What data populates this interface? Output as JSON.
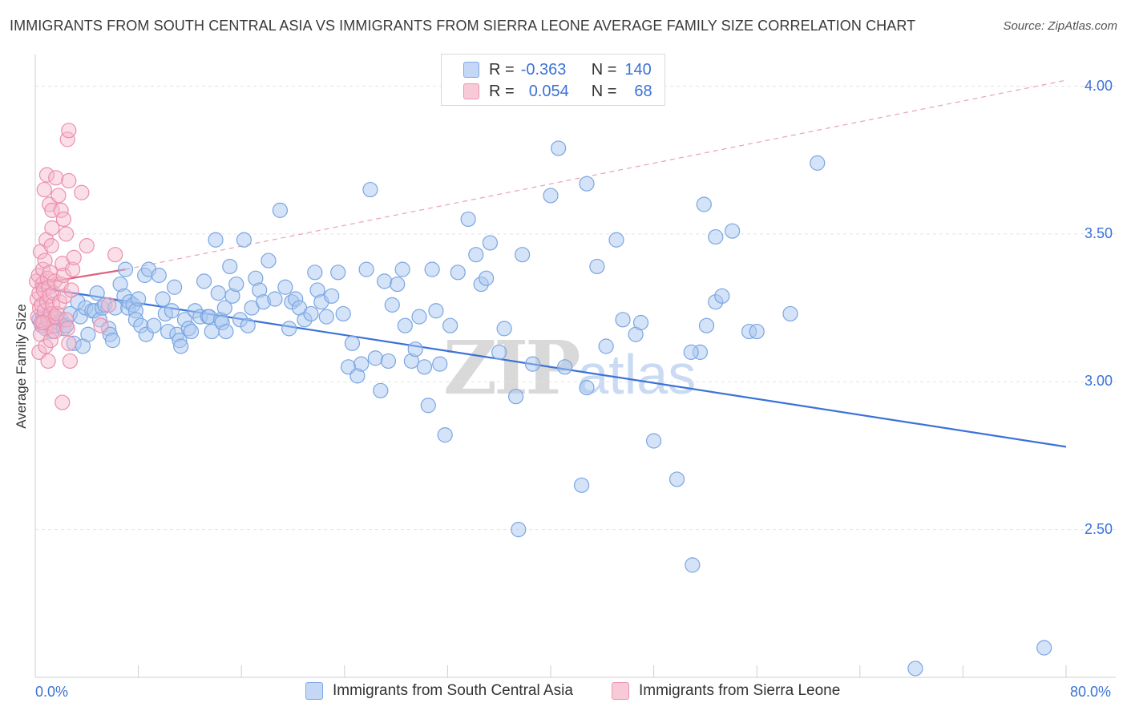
{
  "title": "IMMIGRANTS FROM SOUTH CENTRAL ASIA VS IMMIGRANTS FROM SIERRA LEONE AVERAGE FAMILY SIZE CORRELATION CHART",
  "source": "Source: ZipAtlas.com",
  "watermark": {
    "zip": "ZIP",
    "atlas": "atlas"
  },
  "colors": {
    "blue": "#3b72d8",
    "blue_fill": "#aac8f0",
    "pink": "#e0607e",
    "pink_fill": "#f4b8cc"
  },
  "legend": {
    "rows": [
      {
        "r_label": "R =",
        "r_value": "-0.363",
        "n_label": "N =",
        "n_value": "140"
      },
      {
        "r_label": "R =",
        "r_value": "0.054",
        "n_label": "N =",
        "n_value": "68"
      }
    ]
  },
  "chart_data": {
    "type": "scatter",
    "title": "IMMIGRANTS FROM SOUTH CENTRAL ASIA VS IMMIGRANTS FROM SIERRA LEONE AVERAGE FAMILY SIZE CORRELATION CHART",
    "xlabel": "",
    "ylabel": "Average Family Size",
    "xlim": [
      0,
      80
    ],
    "ylim": [
      2.0,
      4.08
    ],
    "x_tick_labels": [
      "0.0%",
      "80.0%"
    ],
    "y_ticks": [
      2.5,
      3.0,
      3.5,
      4.0
    ],
    "y_tick_labels": [
      "2.50",
      "3.00",
      "3.50",
      "4.00"
    ],
    "grid": true,
    "legend_position": "top-center",
    "series": [
      {
        "name": "Immigrants from South Central Asia",
        "color": "#3b72d8",
        "trend": {
          "x": [
            0,
            80
          ],
          "y": [
            3.32,
            2.78
          ]
        },
        "points": [
          [
            0.3,
            3.21
          ],
          [
            0.5,
            3.19
          ],
          [
            0.6,
            3.22
          ],
          [
            0.8,
            3.18
          ],
          [
            1.0,
            3.21
          ],
          [
            1.2,
            3.2
          ],
          [
            1.3,
            3.17
          ],
          [
            1.5,
            3.22
          ],
          [
            1.6,
            3.19
          ],
          [
            1.8,
            3.2
          ],
          [
            2.0,
            3.21
          ],
          [
            2.2,
            3.18
          ],
          [
            2.4,
            3.19
          ],
          [
            2.7,
            3.23
          ],
          [
            3.0,
            3.13
          ],
          [
            3.3,
            3.27
          ],
          [
            3.5,
            3.22
          ],
          [
            3.7,
            3.12
          ],
          [
            3.9,
            3.25
          ],
          [
            4.1,
            3.16
          ],
          [
            4.4,
            3.24
          ],
          [
            4.6,
            3.24
          ],
          [
            4.8,
            3.3
          ],
          [
            5.0,
            3.21
          ],
          [
            5.2,
            3.25
          ],
          [
            5.4,
            3.26
          ],
          [
            5.7,
            3.18
          ],
          [
            5.8,
            3.16
          ],
          [
            6.0,
            3.14
          ],
          [
            6.2,
            3.25
          ],
          [
            6.6,
            3.33
          ],
          [
            6.9,
            3.29
          ],
          [
            7.0,
            3.38
          ],
          [
            7.2,
            3.25
          ],
          [
            7.3,
            3.27
          ],
          [
            7.6,
            3.26
          ],
          [
            7.8,
            3.24
          ],
          [
            8.0,
            3.28
          ],
          [
            7.8,
            3.21
          ],
          [
            8.2,
            3.19
          ],
          [
            8.5,
            3.36
          ],
          [
            8.6,
            3.16
          ],
          [
            8.8,
            3.38
          ],
          [
            9.2,
            3.19
          ],
          [
            9.6,
            3.36
          ],
          [
            9.9,
            3.28
          ],
          [
            10.1,
            3.23
          ],
          [
            10.3,
            3.17
          ],
          [
            10.6,
            3.24
          ],
          [
            10.8,
            3.32
          ],
          [
            11.0,
            3.16
          ],
          [
            11.2,
            3.14
          ],
          [
            11.3,
            3.12
          ],
          [
            11.6,
            3.21
          ],
          [
            11.9,
            3.18
          ],
          [
            12.1,
            3.17
          ],
          [
            12.4,
            3.24
          ],
          [
            12.8,
            3.22
          ],
          [
            13.1,
            3.34
          ],
          [
            13.4,
            3.22
          ],
          [
            13.5,
            3.22
          ],
          [
            13.7,
            3.17
          ],
          [
            14.0,
            3.48
          ],
          [
            14.2,
            3.3
          ],
          [
            14.4,
            3.21
          ],
          [
            14.5,
            3.2
          ],
          [
            14.7,
            3.25
          ],
          [
            14.8,
            3.17
          ],
          [
            15.1,
            3.39
          ],
          [
            15.3,
            3.29
          ],
          [
            15.6,
            3.33
          ],
          [
            15.9,
            3.21
          ],
          [
            16.2,
            3.48
          ],
          [
            16.5,
            3.19
          ],
          [
            16.8,
            3.25
          ],
          [
            17.1,
            3.35
          ],
          [
            17.4,
            3.31
          ],
          [
            17.7,
            3.27
          ],
          [
            18.1,
            3.41
          ],
          [
            18.6,
            3.28
          ],
          [
            19.0,
            3.58
          ],
          [
            19.4,
            3.32
          ],
          [
            19.7,
            3.18
          ],
          [
            19.9,
            3.27
          ],
          [
            20.2,
            3.28
          ],
          [
            20.5,
            3.25
          ],
          [
            20.9,
            3.21
          ],
          [
            21.4,
            3.23
          ],
          [
            21.7,
            3.37
          ],
          [
            21.9,
            3.31
          ],
          [
            22.2,
            3.27
          ],
          [
            22.6,
            3.22
          ],
          [
            23.0,
            3.29
          ],
          [
            23.5,
            3.37
          ],
          [
            23.9,
            3.23
          ],
          [
            24.3,
            3.05
          ],
          [
            24.6,
            3.13
          ],
          [
            25.0,
            3.02
          ],
          [
            25.3,
            3.06
          ],
          [
            25.7,
            3.38
          ],
          [
            26.0,
            3.65
          ],
          [
            26.4,
            3.08
          ],
          [
            26.8,
            2.97
          ],
          [
            27.1,
            3.34
          ],
          [
            27.4,
            3.07
          ],
          [
            27.7,
            3.26
          ],
          [
            28.1,
            3.33
          ],
          [
            28.5,
            3.38
          ],
          [
            28.7,
            3.19
          ],
          [
            29.2,
            3.07
          ],
          [
            29.5,
            3.11
          ],
          [
            29.8,
            3.22
          ],
          [
            30.2,
            3.05
          ],
          [
            30.5,
            2.92
          ],
          [
            30.8,
            3.38
          ],
          [
            31.1,
            3.24
          ],
          [
            31.4,
            3.06
          ],
          [
            31.8,
            2.82
          ],
          [
            32.2,
            3.19
          ],
          [
            32.8,
            3.37
          ],
          [
            33.6,
            3.55
          ],
          [
            34.2,
            3.43
          ],
          [
            34.6,
            3.33
          ],
          [
            35.0,
            3.35
          ],
          [
            35.3,
            3.47
          ],
          [
            36.0,
            3.1
          ],
          [
            36.4,
            3.18
          ],
          [
            37.3,
            2.95
          ],
          [
            37.8,
            3.43
          ],
          [
            38.6,
            3.06
          ],
          [
            40.0,
            3.63
          ],
          [
            41.1,
            3.05
          ],
          [
            42.4,
            2.65
          ],
          [
            42.8,
            2.98
          ],
          [
            43.6,
            3.39
          ],
          [
            44.3,
            3.12
          ],
          [
            45.1,
            3.48
          ],
          [
            45.6,
            3.21
          ],
          [
            46.6,
            3.16
          ],
          [
            47.0,
            3.2
          ],
          [
            48.0,
            2.8
          ],
          [
            49.8,
            2.67
          ],
          [
            51.6,
            3.1
          ],
          [
            52.1,
            3.19
          ],
          [
            52.8,
            3.27
          ],
          [
            53.3,
            3.29
          ],
          [
            55.4,
            3.17
          ],
          [
            56.0,
            3.17
          ],
          [
            40.6,
            3.79
          ],
          [
            42.8,
            3.67
          ],
          [
            51.9,
            3.6
          ],
          [
            54.1,
            3.51
          ],
          [
            60.7,
            3.74
          ],
          [
            37.5,
            2.5
          ],
          [
            51.0,
            2.38
          ],
          [
            58.6,
            3.23
          ],
          [
            68.3,
            2.03
          ],
          [
            78.3,
            2.1
          ],
          [
            50.9,
            3.1
          ],
          [
            52.8,
            3.49
          ]
        ]
      },
      {
        "name": "Immigrants from Sierra Leone",
        "color": "#e0607e",
        "trend": {
          "x": [
            0,
            7.0
          ],
          "y": [
            3.33,
            3.38
          ]
        },
        "trend_extension": {
          "x": [
            7.0,
            80
          ],
          "y": [
            3.38,
            4.02
          ]
        },
        "points": [
          [
            0.1,
            3.34
          ],
          [
            0.15,
            3.28
          ],
          [
            0.2,
            3.22
          ],
          [
            0.25,
            3.36
          ],
          [
            0.3,
            3.3
          ],
          [
            0.35,
            3.25
          ],
          [
            0.4,
            3.44
          ],
          [
            0.45,
            3.2
          ],
          [
            0.5,
            3.26
          ],
          [
            0.55,
            3.33
          ],
          [
            0.6,
            3.38
          ],
          [
            0.65,
            3.31
          ],
          [
            0.7,
            3.24
          ],
          [
            0.75,
            3.41
          ],
          [
            0.8,
            3.18
          ],
          [
            0.85,
            3.48
          ],
          [
            0.9,
            3.27
          ],
          [
            0.95,
            3.35
          ],
          [
            1.0,
            3.21
          ],
          [
            1.05,
            3.32
          ],
          [
            1.1,
            3.29
          ],
          [
            1.15,
            3.37
          ],
          [
            1.2,
            3.23
          ],
          [
            1.25,
            3.46
          ],
          [
            1.3,
            3.52
          ],
          [
            1.35,
            3.26
          ],
          [
            1.4,
            3.3
          ],
          [
            1.45,
            3.19
          ],
          [
            1.5,
            3.34
          ],
          [
            1.55,
            3.22
          ],
          [
            0.3,
            3.1
          ],
          [
            0.4,
            3.16
          ],
          [
            0.6,
            3.2
          ],
          [
            0.8,
            3.12
          ],
          [
            1.0,
            3.07
          ],
          [
            1.2,
            3.14
          ],
          [
            1.5,
            3.17
          ],
          [
            1.7,
            3.23
          ],
          [
            1.9,
            3.27
          ],
          [
            2.0,
            3.33
          ],
          [
            2.1,
            3.4
          ],
          [
            2.2,
            3.36
          ],
          [
            2.3,
            3.29
          ],
          [
            2.4,
            3.21
          ],
          [
            2.5,
            3.18
          ],
          [
            2.6,
            3.13
          ],
          [
            2.7,
            3.07
          ],
          [
            2.8,
            3.31
          ],
          [
            2.9,
            3.38
          ],
          [
            3.0,
            3.42
          ],
          [
            0.7,
            3.65
          ],
          [
            0.9,
            3.7
          ],
          [
            1.1,
            3.6
          ],
          [
            1.3,
            3.58
          ],
          [
            1.6,
            3.69
          ],
          [
            1.8,
            3.63
          ],
          [
            2.0,
            3.58
          ],
          [
            2.2,
            3.55
          ],
          [
            2.4,
            3.5
          ],
          [
            2.6,
            3.68
          ],
          [
            2.5,
            3.82
          ],
          [
            2.6,
            3.85
          ],
          [
            3.6,
            3.64
          ],
          [
            4.0,
            3.46
          ],
          [
            5.1,
            3.19
          ],
          [
            5.7,
            3.26
          ],
          [
            6.2,
            3.43
          ],
          [
            2.1,
            2.93
          ]
        ]
      }
    ]
  },
  "bottom_legend": [
    "Immigrants from South Central Asia",
    "Immigrants from Sierra Leone"
  ]
}
